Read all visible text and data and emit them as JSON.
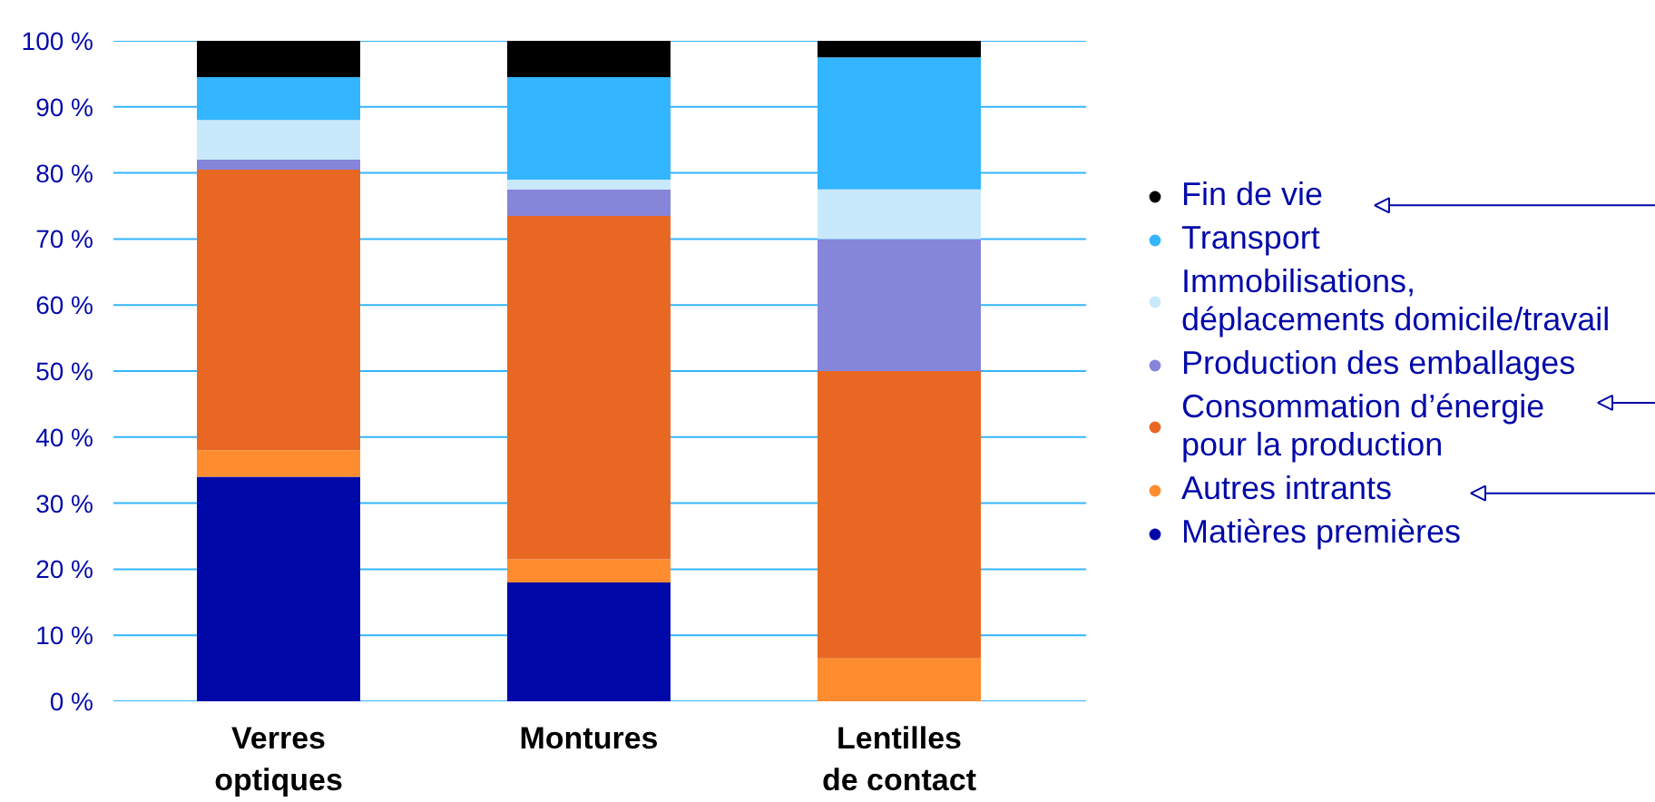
{
  "chart_data": {
    "type": "bar",
    "stacked": true,
    "categories": [
      "Verres optiques",
      "Montures",
      "Lentilles de contact"
    ],
    "series": [
      {
        "name": "Matières premières",
        "color": "#0009a8",
        "values": [
          34,
          18,
          0
        ]
      },
      {
        "name": "Autres intrants",
        "color": "#ff8c2e",
        "values": [
          4,
          3.5,
          6.5
        ]
      },
      {
        "name": "Consommation d’énergie\npour la production",
        "color": "#e86823",
        "values": [
          42.5,
          52,
          43.5
        ]
      },
      {
        "name": "Production des emballages",
        "color": "#8585d9",
        "values": [
          1.5,
          4,
          20
        ]
      },
      {
        "name": "Immobilisations,\ndéplacements domicile/travail",
        "color": "#c8e9fb",
        "values": [
          6,
          1.5,
          7.5
        ]
      },
      {
        "name": "Transport",
        "color": "#33b5ff",
        "values": [
          6.5,
          15.5,
          20
        ]
      },
      {
        "name": "Fin de vie",
        "color": "#000000",
        "values": [
          5.5,
          5.5,
          2.5
        ]
      }
    ],
    "ylim": [
      0,
      100
    ],
    "yticks": [
      {
        "value": 0,
        "label": "0 %"
      },
      {
        "value": 10,
        "label": "10 %"
      },
      {
        "value": 20,
        "label": "20 %"
      },
      {
        "value": 30,
        "label": "30 %"
      },
      {
        "value": 40,
        "label": "40 %"
      },
      {
        "value": 50,
        "label": "50 %"
      },
      {
        "value": 60,
        "label": "60 %"
      },
      {
        "value": 70,
        "label": "70 %"
      },
      {
        "value": 80,
        "label": "80 %"
      },
      {
        "value": 90,
        "label": "90 %"
      },
      {
        "value": 100,
        "label": "100 %"
      }
    ],
    "grid": "y",
    "legend": "right"
  }
}
